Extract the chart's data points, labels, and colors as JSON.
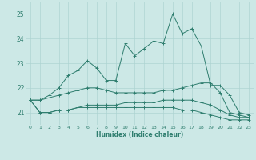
{
  "xlabel": "Humidex (Indice chaleur)",
  "x": [
    0,
    1,
    2,
    3,
    4,
    5,
    6,
    7,
    8,
    9,
    10,
    11,
    12,
    13,
    14,
    15,
    16,
    17,
    18,
    19,
    20,
    21,
    22,
    23
  ],
  "line1": [
    21.5,
    21.5,
    21.7,
    22.0,
    22.5,
    22.7,
    23.1,
    22.8,
    22.3,
    22.3,
    23.8,
    23.3,
    23.6,
    23.9,
    23.8,
    25.0,
    24.2,
    24.4,
    23.7,
    22.1,
    22.1,
    21.7,
    21.0,
    20.9
  ],
  "line2": [
    21.5,
    21.5,
    21.6,
    21.7,
    21.8,
    21.9,
    22.0,
    22.0,
    21.9,
    21.8,
    21.8,
    21.8,
    21.8,
    21.8,
    21.9,
    21.9,
    22.0,
    22.1,
    22.2,
    22.2,
    21.8,
    21.0,
    20.9,
    20.8
  ],
  "line3": [
    21.5,
    21.0,
    21.0,
    21.1,
    21.1,
    21.2,
    21.3,
    21.3,
    21.3,
    21.3,
    21.4,
    21.4,
    21.4,
    21.4,
    21.5,
    21.5,
    21.5,
    21.5,
    21.4,
    21.3,
    21.1,
    20.9,
    20.8,
    20.8
  ],
  "line4": [
    21.5,
    21.0,
    21.0,
    21.1,
    21.1,
    21.2,
    21.2,
    21.2,
    21.2,
    21.2,
    21.2,
    21.2,
    21.2,
    21.2,
    21.2,
    21.2,
    21.1,
    21.1,
    21.0,
    20.9,
    20.8,
    20.7,
    20.7,
    20.7
  ],
  "ylim": [
    20.5,
    25.5
  ],
  "yticks": [
    21,
    22,
    23,
    24,
    25
  ],
  "xticks": [
    0,
    1,
    2,
    3,
    4,
    5,
    6,
    7,
    8,
    9,
    10,
    11,
    12,
    13,
    14,
    15,
    16,
    17,
    18,
    19,
    20,
    21,
    22,
    23
  ],
  "line_color": "#2e7d6e",
  "bg_color": "#cce8e6",
  "grid_color": "#aed4d2"
}
